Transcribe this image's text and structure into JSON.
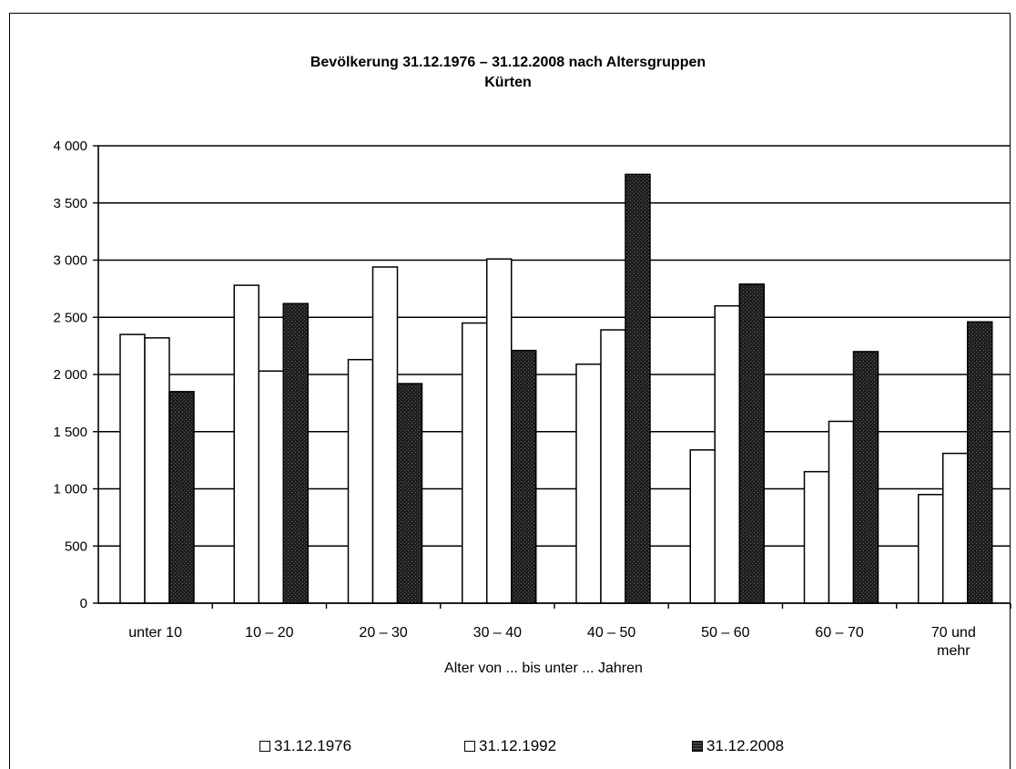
{
  "chart_data": {
    "type": "bar",
    "title": "Bevölkerung 31.12.1976 – 31.12.2008 nach Altersgruppen",
    "subtitle": "Kürten",
    "xlabel": "Alter von ... bis unter ... Jahren",
    "ylabel": "",
    "ylim": [
      0,
      4000
    ],
    "yticks": [
      0,
      500,
      1000,
      1500,
      2000,
      2500,
      3000,
      3500,
      4000
    ],
    "ytick_labels": [
      "0",
      "500",
      "1 000",
      "1 500",
      "2 000",
      "2 500",
      "3 000",
      "3 500",
      "4 000"
    ],
    "categories": [
      "unter 10",
      "10 – 20",
      "20 – 30",
      "30 – 40",
      "40 – 50",
      "50 – 60",
      "60 – 70",
      "70 und mehr"
    ],
    "series": [
      {
        "name": "31.12.1976",
        "values": [
          2350,
          2780,
          2130,
          2450,
          2090,
          1340,
          1150,
          950
        ]
      },
      {
        "name": "31.12.1992",
        "values": [
          2320,
          2030,
          2940,
          3010,
          2390,
          2600,
          1590,
          1310
        ]
      },
      {
        "name": "31.12.2008",
        "values": [
          1850,
          2620,
          1920,
          2210,
          3750,
          2790,
          2200,
          2460
        ]
      }
    ],
    "grid": true,
    "legend_position": "bottom",
    "colors": {
      "s1976": "#ffffff",
      "s1992": "#ffffff",
      "s2008": "#1f1f1f"
    }
  }
}
